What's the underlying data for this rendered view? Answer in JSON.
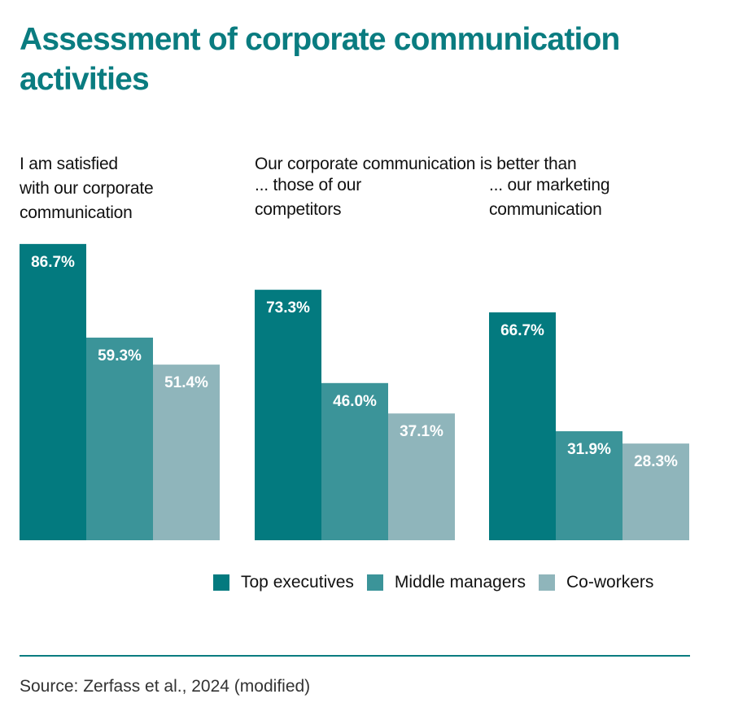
{
  "title": "Assessment of corporate communication activities",
  "labels": {
    "group1": "I am satisfied\nwith our corporate\ncommunication",
    "header": "Our corporate communication is better than",
    "group2": "... those of our\ncompetitors",
    "group3": "... our marketing\ncommunication"
  },
  "legend": {
    "top": "Top executives",
    "middle": "Middle managers",
    "co": "Co-workers"
  },
  "source": "Source: Zerfass et al., 2024 (modified)",
  "colors": {
    "title": "#0a7c80",
    "top": "#037a7f",
    "middle": "#3b9499",
    "co": "#8fb5bb",
    "label_text": "#ffffff"
  },
  "chart_data": {
    "type": "bar",
    "categories": [
      "I am satisfied with our corporate communication",
      "... those of our competitors",
      "... our marketing communication"
    ],
    "series": [
      {
        "name": "Top executives",
        "values": [
          86.7,
          73.3,
          66.7
        ]
      },
      {
        "name": "Middle managers",
        "values": [
          59.3,
          46.0,
          31.9
        ]
      },
      {
        "name": "Co-workers",
        "values": [
          51.4,
          37.1,
          28.3
        ]
      }
    ],
    "value_suffix": "%",
    "ylim": [
      0,
      100
    ],
    "grid": false,
    "legend_position": "bottom-right"
  }
}
